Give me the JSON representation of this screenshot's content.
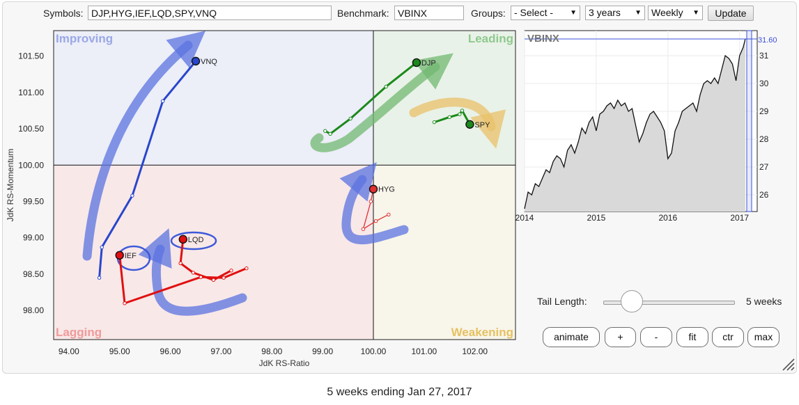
{
  "controls": {
    "symbols_label": "Symbols:",
    "symbols_value": "DJP,HYG,IEF,LQD,SPY,VNQ",
    "benchmark_label": "Benchmark:",
    "benchmark_value": "VBINX",
    "groups_label": "Groups:",
    "groups_selected": "- Select -",
    "period_selected": "3 years",
    "frequency_selected": "Weekly",
    "update_label": "Update"
  },
  "chart_data": [
    {
      "type": "scatter",
      "subtype": "relative-rotation-graph",
      "xlabel": "JdK RS-Ratio",
      "ylabel": "JdK RS-Momentum",
      "xlim": [
        93.7,
        102.8
      ],
      "ylim": [
        97.6,
        101.85
      ],
      "x_ticks": [
        "94.00",
        "95.00",
        "96.00",
        "97.00",
        "98.00",
        "99.00",
        "100.00",
        "101.00",
        "102.00"
      ],
      "y_ticks": [
        "98.00",
        "98.50",
        "99.00",
        "99.50",
        "100.00",
        "100.50",
        "101.00",
        "101.50"
      ],
      "quadrants": {
        "improving": "Improving",
        "leading": "Leading",
        "lagging": "Lagging",
        "weakening": "Weakening"
      },
      "quadrant_colors": {
        "improving": "#eceef8",
        "leading": "#e9f2e8",
        "lagging": "#f8e8e8",
        "weakening": "#f8f5ea"
      },
      "series": [
        {
          "name": "VNQ",
          "color": "#2946cc",
          "x": [
            94.6,
            94.65,
            95.25,
            95.85,
            96.5
          ],
          "y": [
            98.45,
            98.87,
            99.58,
            100.88,
            101.43
          ]
        },
        {
          "name": "DJP",
          "color": "#1a8a1a",
          "x": [
            99.05,
            99.15,
            99.55,
            100.25,
            100.85
          ],
          "y": [
            100.47,
            100.43,
            100.64,
            101.08,
            101.41
          ]
        },
        {
          "name": "SPY",
          "color": "#1a8a1a",
          "x": [
            101.2,
            101.5,
            101.7,
            101.75,
            101.9
          ],
          "y": [
            100.59,
            100.66,
            100.7,
            100.75,
            100.56
          ]
        },
        {
          "name": "HYG",
          "color": "#e03030",
          "x": [
            100.3,
            100.05,
            99.8,
            99.95,
            100.0
          ],
          "y": [
            99.32,
            99.23,
            99.12,
            99.5,
            99.67
          ]
        },
        {
          "name": "LQD",
          "color": "#e01010",
          "x": [
            97.2,
            96.85,
            96.45,
            96.2,
            96.25
          ],
          "y": [
            98.55,
            98.42,
            98.52,
            98.65,
            98.98
          ]
        },
        {
          "name": "IEF",
          "color": "#e01010",
          "x": [
            97.5,
            97.05,
            96.6,
            95.1,
            95.0
          ],
          "y": [
            98.58,
            98.45,
            98.46,
            98.1,
            98.76
          ]
        }
      ]
    },
    {
      "type": "line",
      "title": "VBINX",
      "x_ticks": [
        "2014",
        "2015",
        "2016",
        "2017"
      ],
      "y_ticks": [
        "26",
        "27",
        "28",
        "29",
        "30",
        "31"
      ],
      "last_value_label": "31.60",
      "xlim": [
        2014.0,
        2017.1
      ],
      "ylim": [
        25.4,
        31.9
      ],
      "x": [
        2014.0,
        2014.05,
        2014.1,
        2014.15,
        2014.2,
        2014.25,
        2014.3,
        2014.35,
        2014.4,
        2014.45,
        2014.5,
        2014.55,
        2014.6,
        2014.65,
        2014.7,
        2014.75,
        2014.8,
        2014.85,
        2014.9,
        2014.95,
        2015.0,
        2015.05,
        2015.1,
        2015.15,
        2015.2,
        2015.25,
        2015.3,
        2015.35,
        2015.4,
        2015.45,
        2015.5,
        2015.55,
        2015.6,
        2015.65,
        2015.7,
        2015.75,
        2015.8,
        2015.85,
        2015.9,
        2015.95,
        2016.0,
        2016.05,
        2016.1,
        2016.15,
        2016.2,
        2016.25,
        2016.3,
        2016.35,
        2016.4,
        2016.45,
        2016.5,
        2016.55,
        2016.6,
        2016.65,
        2016.7,
        2016.75,
        2016.8,
        2016.85,
        2016.9,
        2016.95,
        2017.0,
        2017.05,
        2017.08
      ],
      "y": [
        25.5,
        26.1,
        26.0,
        26.4,
        26.3,
        26.6,
        26.9,
        26.8,
        27.2,
        27.4,
        27.3,
        27.0,
        27.6,
        27.8,
        27.5,
        27.9,
        28.4,
        28.2,
        28.6,
        28.8,
        28.3,
        28.9,
        29.0,
        29.2,
        29.3,
        29.1,
        29.4,
        29.2,
        29.3,
        29.0,
        29.1,
        28.5,
        27.9,
        28.2,
        28.6,
        28.9,
        29.0,
        28.8,
        28.6,
        28.3,
        27.3,
        27.5,
        28.3,
        28.6,
        29.0,
        29.1,
        29.2,
        29.3,
        29.0,
        29.6,
        30.0,
        30.1,
        30.0,
        30.2,
        30.0,
        30.5,
        31.0,
        30.9,
        30.7,
        30.1,
        31.0,
        31.3,
        31.6
      ]
    }
  ],
  "tail": {
    "label": "Tail Length:",
    "value_label": "5 weeks",
    "weeks": 5,
    "max_weeks": 26
  },
  "buttons": {
    "animate": "animate",
    "plus": "+",
    "minus": "-",
    "fit": "fit",
    "ctr": "ctr",
    "max": "max"
  },
  "footer": "5 weeks ending Jan 27, 2017"
}
